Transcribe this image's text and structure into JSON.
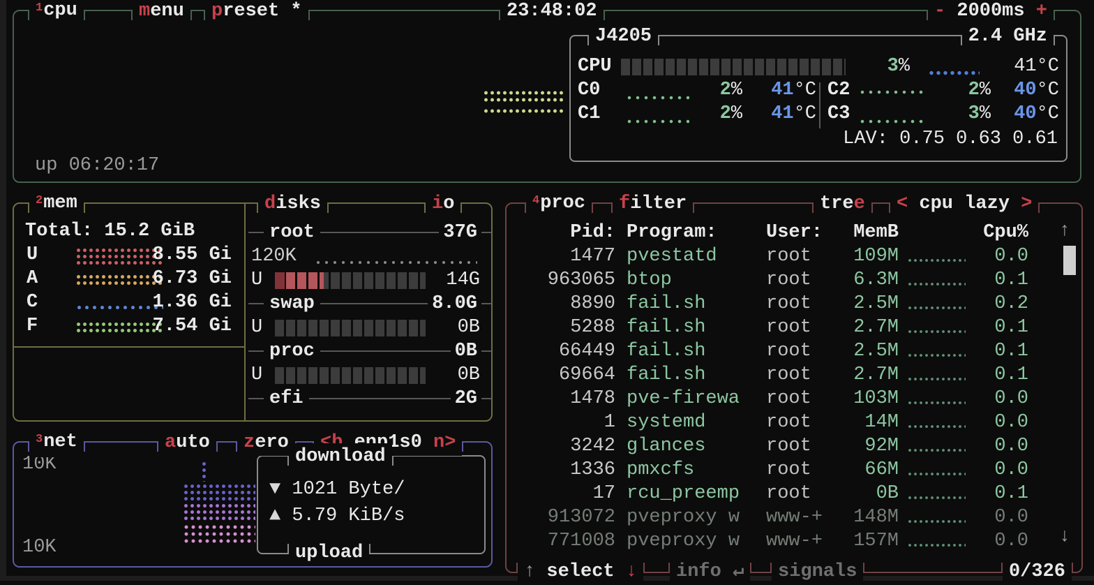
{
  "cpu_box": {
    "tab_number": "1",
    "title": "cpu",
    "menu": {
      "accent": "m",
      "rest": "enu"
    },
    "preset": {
      "accent": "p",
      "rest": "reset",
      "star": "*"
    },
    "clock": "23:48:02",
    "interval": {
      "minus": "-",
      "value": "2000ms",
      "plus": "+"
    },
    "uptime": "up 06:20:17",
    "cpu_name": "J4205",
    "freq": "2.4 GHz",
    "total_row": {
      "label": "CPU",
      "pct": "3",
      "pct_sign": "%",
      "temp": "41",
      "temp_unit": "°C"
    },
    "cores": [
      {
        "label": "C0",
        "pct": "2",
        "pct_sign": "%",
        "temp": "41",
        "temp_unit": "°C"
      },
      {
        "label": "C1",
        "pct": "2",
        "pct_sign": "%",
        "temp": "41",
        "temp_unit": "°C"
      },
      {
        "label": "C2",
        "pct": "2",
        "pct_sign": "%",
        "temp": "40",
        "temp_unit": "°C"
      },
      {
        "label": "C3",
        "pct": "3",
        "pct_sign": "%",
        "temp": "40",
        "temp_unit": "°C"
      }
    ],
    "load_avg": "LAV: 0.75 0.63 0.61"
  },
  "mem_box": {
    "tab_number": "2",
    "title": "mem",
    "total": "Total: 15.2 GiB",
    "rows": [
      {
        "key": "U",
        "value": "8.55 Gi"
      },
      {
        "key": "A",
        "value": "6.73 Gi"
      },
      {
        "key": "C",
        "value": "1.36 Gi"
      },
      {
        "key": "F",
        "value": "7.54 Gi"
      }
    ]
  },
  "disks_box": {
    "title": {
      "accent": "d",
      "rest": "isks"
    },
    "io": {
      "accent": "i",
      "rest": "o"
    },
    "root": {
      "name": "root",
      "size": "37G",
      "io_value": "120K",
      "used_label": "U",
      "used": "14G"
    },
    "swap": {
      "name": "swap",
      "size": "8.0G",
      "used_label": "U",
      "used": "0B"
    },
    "proc": {
      "name": "proc",
      "size": "0B",
      "used_label": "U",
      "used": "0B"
    },
    "efi": {
      "name": "efi",
      "size": "2G"
    }
  },
  "net_box": {
    "tab_number": "3",
    "title": "net",
    "auto": {
      "accent": "a",
      "rest": "uto"
    },
    "zero": {
      "accent": "z",
      "rest": "ero"
    },
    "iface": {
      "prev": "<b",
      "name": "enp1s0",
      "next": "n>"
    },
    "scale_top": "10K",
    "scale_bottom": "10K",
    "download_label": "download",
    "upload_label": "upload",
    "down": {
      "arrow": "▼",
      "value": "1021 Byte/"
    },
    "up": {
      "arrow": "▲",
      "value": "5.79 KiB/s"
    }
  },
  "proc_box": {
    "tab_number": "4",
    "title": "proc",
    "filter": {
      "accent": "f",
      "rest": "ilter"
    },
    "tree": {
      "rest": "tre",
      "accent": "e"
    },
    "sort": {
      "prev": "<",
      "value": "cpu lazy",
      "next": ">"
    },
    "headers": {
      "pid": "Pid:",
      "program": "Program:",
      "user": "User:",
      "mem": "MemB",
      "cpu": "Cpu%",
      "scroll_up": "↑"
    },
    "rows": [
      {
        "pid": "1477",
        "program": "pvestatd",
        "user": "root",
        "mem": "109M",
        "cpu": "0.0",
        "dim": false
      },
      {
        "pid": "963065",
        "program": "btop",
        "user": "root",
        "mem": "6.3M",
        "cpu": "0.1",
        "dim": false
      },
      {
        "pid": "8890",
        "program": "fail.sh",
        "user": "root",
        "mem": "2.5M",
        "cpu": "0.2",
        "dim": false
      },
      {
        "pid": "5288",
        "program": "fail.sh",
        "user": "root",
        "mem": "2.7M",
        "cpu": "0.1",
        "dim": false
      },
      {
        "pid": "66449",
        "program": "fail.sh",
        "user": "root",
        "mem": "2.5M",
        "cpu": "0.1",
        "dim": false
      },
      {
        "pid": "69664",
        "program": "fail.sh",
        "user": "root",
        "mem": "2.7M",
        "cpu": "0.1",
        "dim": false
      },
      {
        "pid": "1478",
        "program": "pve-firewa",
        "user": "root",
        "mem": "103M",
        "cpu": "0.0",
        "dim": false
      },
      {
        "pid": "1",
        "program": "systemd",
        "user": "root",
        "mem": "14M",
        "cpu": "0.0",
        "dim": false
      },
      {
        "pid": "3242",
        "program": "glances",
        "user": "root",
        "mem": "92M",
        "cpu": "0.0",
        "dim": false
      },
      {
        "pid": "1336",
        "program": "pmxcfs",
        "user": "root",
        "mem": "66M",
        "cpu": "0.0",
        "dim": false
      },
      {
        "pid": "17",
        "program": "rcu_preemp",
        "user": "root",
        "mem": "0B",
        "cpu": "0.1",
        "dim": false
      },
      {
        "pid": "913072",
        "program": "pveproxy w",
        "user": "www-+",
        "mem": "148M",
        "cpu": "0.0",
        "dim": true
      },
      {
        "pid": "771008",
        "program": "pveproxy w",
        "user": "www-+",
        "mem": "157M",
        "cpu": "0.0",
        "dim": true
      }
    ],
    "scroll_down": "↓",
    "footer": {
      "select_up": "↑",
      "select": "select",
      "select_down": "↓",
      "info": "info",
      "info_key": "↵",
      "signals": "signals",
      "count": "0/326"
    }
  }
}
